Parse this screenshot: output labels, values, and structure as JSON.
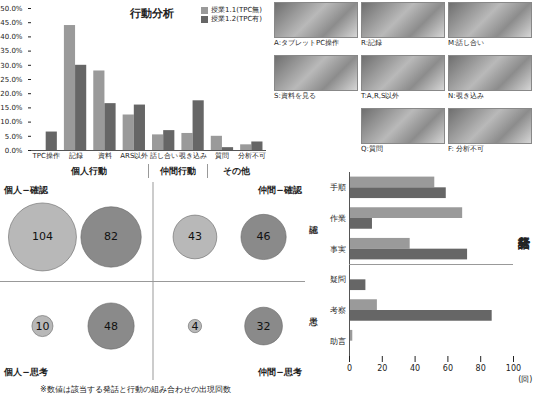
{
  "chart_data": [
    {
      "type": "bar",
      "title": "行動分析",
      "categories": [
        "TPC操作",
        "記録",
        "資料",
        "ARS以外",
        "話し合い",
        "覗き込み",
        "質問",
        "分析不可"
      ],
      "groups": [
        {
          "label": "個人行動",
          "categories": [
            "TPC操作",
            "記録",
            "資料",
            "ARS以外"
          ]
        },
        {
          "label": "仲間行動",
          "categories": [
            "話し合い",
            "覗き込み"
          ]
        },
        {
          "label": "その他",
          "categories": [
            "質問",
            "分析不可"
          ]
        }
      ],
      "series": [
        {
          "name": "授業1.1(TPC無)",
          "color": "#9a9a9a",
          "values": [
            0,
            44,
            28,
            12.5,
            5.5,
            6,
            5,
            2
          ]
        },
        {
          "name": "授業1.2(TPC有)",
          "color": "#666666",
          "values": [
            6.5,
            30,
            16.5,
            16,
            7,
            17.5,
            1,
            3
          ]
        }
      ],
      "ylim": [
        0,
        50
      ],
      "yticks": [
        {
          "value": 0,
          "label": "0.0%"
        },
        {
          "value": 5,
          "label": "5.0%"
        },
        {
          "value": 10,
          "label": "10.0%"
        },
        {
          "value": 15,
          "label": "15.0%"
        },
        {
          "value": 20,
          "label": "20.0%"
        },
        {
          "value": 25,
          "label": "25.0%"
        },
        {
          "value": 30,
          "label": "30.0%"
        },
        {
          "value": 35,
          "label": "35.0%"
        },
        {
          "value": 40,
          "label": "40.0%"
        },
        {
          "value": 45,
          "label": "45.0%"
        },
        {
          "value": 50,
          "label": "50.0%"
        }
      ],
      "legend": "top-right"
    },
    {
      "type": "bar",
      "orientation": "horizontal",
      "title": "発話分析",
      "categories": [
        "手順",
        "作業",
        "事実",
        "疑問",
        "考察",
        "助言"
      ],
      "groups": [
        {
          "label": "確認",
          "categories": [
            "手順",
            "作業",
            "事実"
          ]
        },
        {
          "label": "思考",
          "categories": [
            "疑問",
            "考察",
            "助言"
          ]
        }
      ],
      "series": [
        {
          "color": "#9a9a9a",
          "values": [
            52,
            69,
            37,
            0,
            17,
            2
          ]
        },
        {
          "color": "#666666",
          "values": [
            59,
            14,
            72,
            10,
            87,
            0
          ]
        }
      ],
      "xlim": [
        0,
        100
      ],
      "xticks": [
        0,
        20,
        40,
        60,
        80,
        100
      ],
      "xlabel": "(回)"
    },
    {
      "type": "bubble",
      "categories": [
        "個人−確認",
        "仲間−確認",
        "個人−思考",
        "仲間−思考"
      ],
      "series": [
        {
          "color": "#b8b8b8",
          "values": [
            104,
            43,
            10,
            4
          ]
        },
        {
          "color": "#8a8a8a",
          "values": [
            82,
            46,
            48,
            32
          ]
        }
      ],
      "data_labels": true
    }
  ],
  "photos": [
    "A:タブレットPC操作",
    "R:記録",
    "M:話し合い",
    "S:資料を見る",
    "T:A,R,S以外",
    "N:覗き込み",
    "Q:質問",
    "F: 分析不可"
  ],
  "footnote": "※数値は該当する発話と行動の組み合わせの出現回数"
}
